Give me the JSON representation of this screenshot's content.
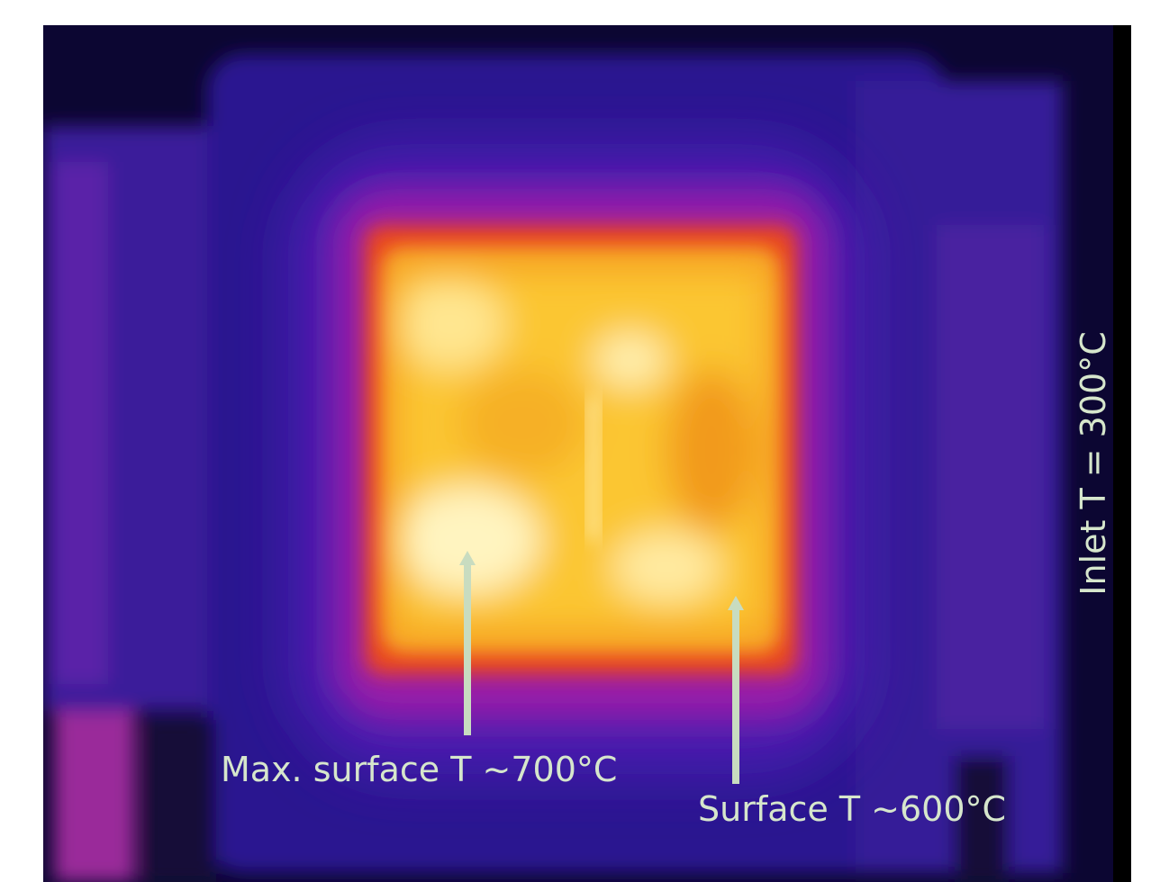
{
  "annotations": {
    "max_surface": "Max. surface T ~700°C",
    "surface": "Surface T ~600°C",
    "inlet": "Inlet T = 300°C"
  }
}
